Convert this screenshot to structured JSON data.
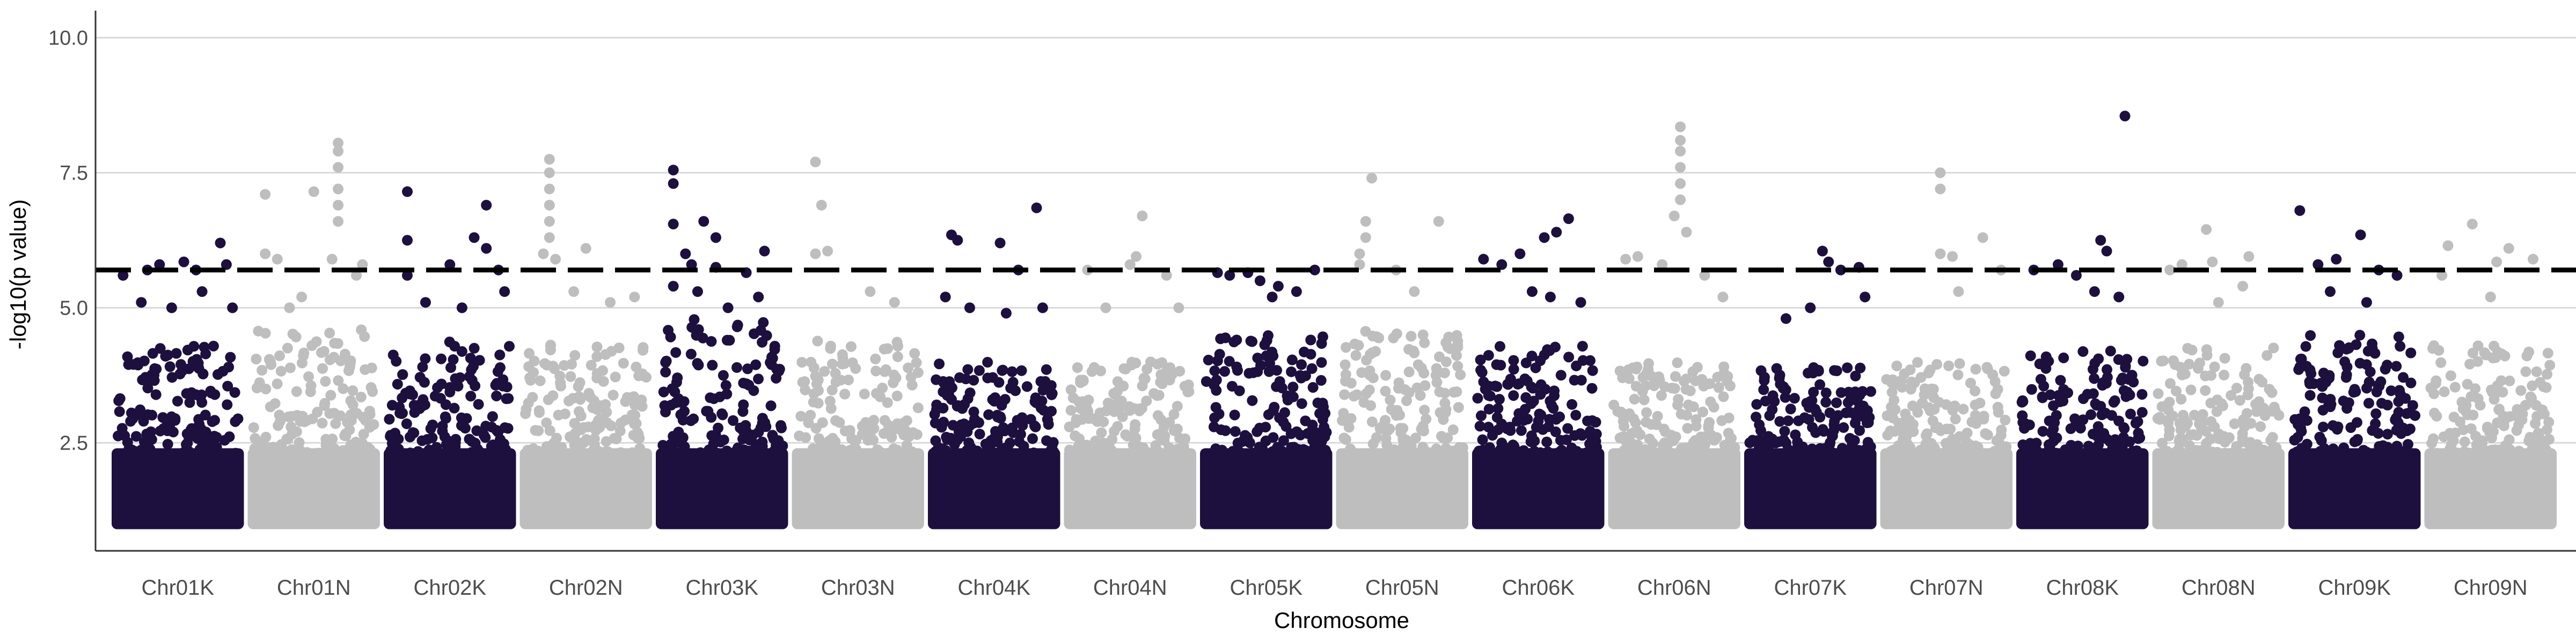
{
  "chart_data": {
    "type": "scatter",
    "subtype": "manhattan",
    "title": "",
    "xlabel": "Chromosome",
    "ylabel": "-log10(p value)",
    "ylim": [
      0.5,
      10.5
    ],
    "yticks": [
      "2.5",
      "5.0",
      "7.5",
      "10.0"
    ],
    "grid": "horizontal major gridlines",
    "legend": "none",
    "threshold": 5.7,
    "colors": {
      "odd": "#1d103f",
      "even": "#bebebe",
      "threshold": "#000000",
      "grid": "#d9d9d9"
    },
    "categories": [
      "Chr01K",
      "Chr01N",
      "Chr02K",
      "Chr02N",
      "Chr03K",
      "Chr03N",
      "Chr04K",
      "Chr04N",
      "Chr05K",
      "Chr05N",
      "Chr06K",
      "Chr06N",
      "Chr07K",
      "Chr07N",
      "Chr08K",
      "Chr08N",
      "Chr09K",
      "Chr09N"
    ],
    "series": [
      {
        "chromosome": "Chr01K",
        "bulk_top": 4.3,
        "points": [
          [
            0.05,
            5.6
          ],
          [
            0.25,
            5.7
          ],
          [
            0.35,
            5.8
          ],
          [
            0.55,
            5.85
          ],
          [
            0.65,
            5.7
          ],
          [
            0.85,
            6.2
          ],
          [
            0.9,
            5.8
          ],
          [
            0.2,
            5.1
          ],
          [
            0.45,
            5.0
          ],
          [
            0.7,
            5.3
          ],
          [
            0.95,
            5.0
          ]
        ]
      },
      {
        "chromosome": "Chr01N",
        "bulk_top": 4.6,
        "points": [
          [
            0.1,
            7.1
          ],
          [
            0.1,
            6.0
          ],
          [
            0.2,
            5.9
          ],
          [
            0.5,
            7.15
          ],
          [
            0.65,
            5.9
          ],
          [
            0.7,
            8.05
          ],
          [
            0.7,
            7.9
          ],
          [
            0.7,
            7.6
          ],
          [
            0.7,
            7.2
          ],
          [
            0.7,
            6.9
          ],
          [
            0.7,
            6.6
          ],
          [
            0.85,
            5.6
          ],
          [
            0.9,
            5.8
          ],
          [
            0.4,
            5.2
          ],
          [
            0.3,
            5.0
          ]
        ]
      },
      {
        "chromosome": "Chr02K",
        "bulk_top": 4.4,
        "points": [
          [
            0.15,
            7.15
          ],
          [
            0.15,
            6.25
          ],
          [
            0.15,
            5.6
          ],
          [
            0.5,
            5.8
          ],
          [
            0.7,
            6.3
          ],
          [
            0.8,
            6.9
          ],
          [
            0.8,
            6.1
          ],
          [
            0.9,
            5.7
          ],
          [
            0.3,
            5.1
          ],
          [
            0.6,
            5.0
          ],
          [
            0.95,
            5.3
          ]
        ]
      },
      {
        "chromosome": "Chr02N",
        "bulk_top": 4.4,
        "points": [
          [
            0.2,
            7.75
          ],
          [
            0.2,
            7.5
          ],
          [
            0.2,
            7.2
          ],
          [
            0.2,
            6.9
          ],
          [
            0.2,
            6.6
          ],
          [
            0.2,
            6.3
          ],
          [
            0.15,
            6.0
          ],
          [
            0.25,
            5.9
          ],
          [
            0.5,
            6.1
          ],
          [
            0.4,
            5.3
          ],
          [
            0.7,
            5.1
          ],
          [
            0.9,
            5.2
          ]
        ]
      },
      {
        "chromosome": "Chr03K",
        "bulk_top": 4.8,
        "points": [
          [
            0.1,
            7.55
          ],
          [
            0.1,
            7.3
          ],
          [
            0.1,
            6.55
          ],
          [
            0.2,
            6.0
          ],
          [
            0.25,
            5.8
          ],
          [
            0.35,
            6.6
          ],
          [
            0.45,
            6.3
          ],
          [
            0.45,
            5.75
          ],
          [
            0.7,
            5.65
          ],
          [
            0.85,
            6.05
          ],
          [
            0.1,
            5.4
          ],
          [
            0.55,
            5.0
          ],
          [
            0.3,
            5.3
          ],
          [
            0.8,
            5.2
          ]
        ]
      },
      {
        "chromosome": "Chr03N",
        "bulk_top": 4.4,
        "points": [
          [
            0.15,
            7.7
          ],
          [
            0.2,
            6.9
          ],
          [
            0.15,
            6.0
          ],
          [
            0.25,
            6.05
          ],
          [
            0.6,
            5.3
          ],
          [
            0.8,
            5.1
          ]
        ]
      },
      {
        "chromosome": "Chr04K",
        "bulk_top": 4.0,
        "points": [
          [
            0.1,
            5.2
          ],
          [
            0.15,
            6.35
          ],
          [
            0.2,
            6.25
          ],
          [
            0.55,
            6.2
          ],
          [
            0.7,
            5.7
          ],
          [
            0.85,
            6.85
          ],
          [
            0.3,
            5.0
          ],
          [
            0.6,
            4.9
          ],
          [
            0.9,
            5.0
          ]
        ]
      },
      {
        "chromosome": "Chr04N",
        "bulk_top": 4.0,
        "points": [
          [
            0.15,
            5.7
          ],
          [
            0.5,
            5.8
          ],
          [
            0.55,
            5.95
          ],
          [
            0.6,
            6.7
          ],
          [
            0.8,
            5.6
          ],
          [
            0.3,
            5.0
          ],
          [
            0.9,
            5.0
          ]
        ]
      },
      {
        "chromosome": "Chr05K",
        "bulk_top": 4.5,
        "points": [
          [
            0.1,
            5.65
          ],
          [
            0.2,
            5.6
          ],
          [
            0.35,
            5.65
          ],
          [
            0.45,
            5.5
          ],
          [
            0.6,
            5.4
          ],
          [
            0.75,
            5.3
          ],
          [
            0.9,
            5.7
          ],
          [
            0.55,
            5.2
          ]
        ]
      },
      {
        "chromosome": "Chr05N",
        "bulk_top": 4.6,
        "points": [
          [
            0.25,
            7.4
          ],
          [
            0.2,
            6.6
          ],
          [
            0.2,
            6.3
          ],
          [
            0.15,
            6.0
          ],
          [
            0.15,
            5.8
          ],
          [
            0.45,
            5.7
          ],
          [
            0.8,
            6.6
          ],
          [
            0.6,
            5.3
          ]
        ]
      },
      {
        "chromosome": "Chr06K",
        "bulk_top": 4.3,
        "points": [
          [
            0.05,
            5.9
          ],
          [
            0.2,
            5.8
          ],
          [
            0.35,
            6.0
          ],
          [
            0.55,
            6.3
          ],
          [
            0.65,
            6.4
          ],
          [
            0.75,
            6.65
          ],
          [
            0.45,
            5.3
          ],
          [
            0.85,
            5.1
          ],
          [
            0.6,
            5.2
          ]
        ]
      },
      {
        "chromosome": "Chr06N",
        "bulk_top": 4.0,
        "points": [
          [
            0.1,
            5.9
          ],
          [
            0.2,
            5.95
          ],
          [
            0.55,
            8.35
          ],
          [
            0.55,
            8.1
          ],
          [
            0.55,
            7.9
          ],
          [
            0.55,
            7.6
          ],
          [
            0.55,
            7.3
          ],
          [
            0.55,
            7.0
          ],
          [
            0.5,
            6.7
          ],
          [
            0.6,
            6.4
          ],
          [
            0.4,
            5.8
          ],
          [
            0.75,
            5.6
          ],
          [
            0.9,
            5.2
          ]
        ]
      },
      {
        "chromosome": "Chr07K",
        "bulk_top": 3.9,
        "points": [
          [
            0.6,
            6.05
          ],
          [
            0.65,
            5.85
          ],
          [
            0.75,
            5.7
          ],
          [
            0.9,
            5.75
          ],
          [
            0.95,
            5.2
          ],
          [
            0.5,
            5.0
          ],
          [
            0.3,
            4.8
          ]
        ]
      },
      {
        "chromosome": "Chr07N",
        "bulk_top": 4.0,
        "points": [
          [
            0.45,
            7.5
          ],
          [
            0.45,
            7.2
          ],
          [
            0.45,
            6.0
          ],
          [
            0.55,
            5.95
          ],
          [
            0.8,
            6.3
          ],
          [
            0.95,
            5.7
          ],
          [
            0.6,
            5.3
          ]
        ]
      },
      {
        "chromosome": "Chr08K",
        "bulk_top": 4.2,
        "points": [
          [
            0.1,
            5.7
          ],
          [
            0.3,
            5.8
          ],
          [
            0.45,
            5.6
          ],
          [
            0.65,
            6.25
          ],
          [
            0.7,
            6.05
          ],
          [
            0.85,
            8.55
          ],
          [
            0.6,
            5.3
          ],
          [
            0.8,
            5.2
          ]
        ]
      },
      {
        "chromosome": "Chr08N",
        "bulk_top": 4.3,
        "points": [
          [
            0.1,
            5.7
          ],
          [
            0.2,
            5.8
          ],
          [
            0.4,
            6.45
          ],
          [
            0.45,
            5.85
          ],
          [
            0.75,
            5.95
          ],
          [
            0.7,
            5.4
          ],
          [
            0.5,
            5.1
          ]
        ]
      },
      {
        "chromosome": "Chr09K",
        "bulk_top": 4.5,
        "points": [
          [
            0.05,
            6.8
          ],
          [
            0.2,
            5.8
          ],
          [
            0.35,
            5.9
          ],
          [
            0.55,
            6.35
          ],
          [
            0.7,
            5.7
          ],
          [
            0.85,
            5.6
          ],
          [
            0.3,
            5.3
          ],
          [
            0.6,
            5.1
          ]
        ]
      },
      {
        "chromosome": "Chr09N",
        "bulk_top": 4.3,
        "points": [
          [
            0.1,
            5.6
          ],
          [
            0.15,
            6.15
          ],
          [
            0.35,
            6.55
          ],
          [
            0.55,
            5.85
          ],
          [
            0.65,
            6.1
          ],
          [
            0.85,
            5.9
          ],
          [
            0.5,
            5.2
          ]
        ]
      }
    ]
  }
}
